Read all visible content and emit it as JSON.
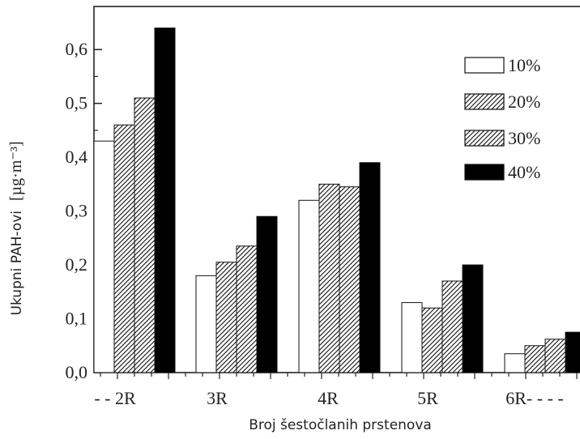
{
  "chart_data": {
    "type": "bar",
    "categories": [
      "- - 2R",
      "3R",
      "4R",
      "5R",
      "6R- - - -"
    ],
    "series": [
      {
        "name": "10%",
        "values": [
          0.43,
          0.18,
          0.32,
          0.13,
          0.035
        ]
      },
      {
        "name": "20%",
        "values": [
          0.46,
          0.205,
          0.35,
          0.12,
          0.05
        ]
      },
      {
        "name": "30%",
        "values": [
          0.51,
          0.235,
          0.345,
          0.17,
          0.062
        ]
      },
      {
        "name": "40%",
        "values": [
          0.64,
          0.29,
          0.39,
          0.2,
          0.075
        ]
      }
    ],
    "xlabel": "Broj šestočlanih prstenova",
    "ylabel": "Ukupni PAH-ovi",
    "ylabel_unit": "[µg·m⁻³]",
    "ylim": [
      0,
      0.68
    ],
    "yticks": [
      0.0,
      0.1,
      0.2,
      0.3,
      0.4,
      0.5,
      0.6
    ],
    "ytick_labels": [
      "0,0",
      "0,1",
      "0,2",
      "0,3",
      "0,4",
      "0,5",
      "0,6"
    ],
    "legend_position": "top-right",
    "series_fills": [
      "white",
      "hatched",
      "hatched",
      "black"
    ],
    "grid": false
  }
}
